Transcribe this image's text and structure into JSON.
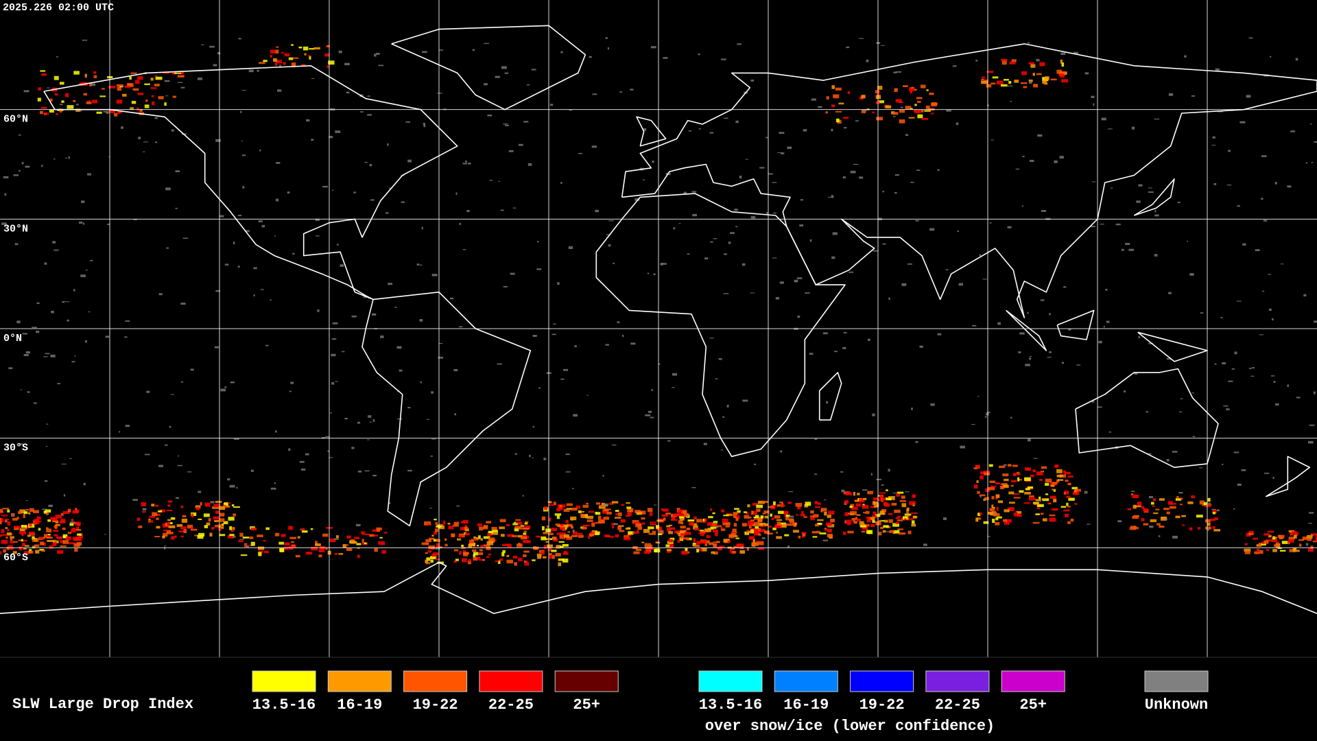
{
  "header": {
    "timestamp": "2025.226 02:00 UTC"
  },
  "map": {
    "latitude_labels": [
      "60°N",
      "30°N",
      "0°N",
      "30°S",
      "60°S"
    ]
  },
  "legend": {
    "title": "SLW Large Drop Index",
    "categories": [
      {
        "label": "13.5-16",
        "color": "#ffff00"
      },
      {
        "label": "16-19",
        "color": "#ff9900"
      },
      {
        "label": "19-22",
        "color": "#ff5500"
      },
      {
        "label": "22-25",
        "color": "#ff0000"
      },
      {
        "label": "25+",
        "color": "#660000"
      }
    ],
    "snow_ice_categories": [
      {
        "label": "13.5-16",
        "color": "#00ffff"
      },
      {
        "label": "16-19",
        "color": "#0080ff"
      },
      {
        "label": "19-22",
        "color": "#0000ff"
      },
      {
        "label": "22-25",
        "color": "#7a1fdf"
      },
      {
        "label": "25+",
        "color": "#cc00cc"
      }
    ],
    "snow_ice_caption": "over snow/ice (lower confidence)",
    "unknown": {
      "label": "Unknown",
      "color": "#808080"
    }
  }
}
